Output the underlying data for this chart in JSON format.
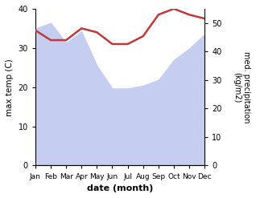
{
  "months": [
    "Jan",
    "Feb",
    "Mar",
    "Apr",
    "May",
    "Jun",
    "Jul",
    "Aug",
    "Sep",
    "Oct",
    "Nov",
    "Dec"
  ],
  "month_indices": [
    0,
    1,
    2,
    3,
    4,
    5,
    6,
    7,
    8,
    9,
    10,
    11
  ],
  "temperature": [
    34.5,
    32.0,
    32.0,
    35.0,
    34.0,
    31.0,
    31.0,
    33.0,
    38.5,
    40.0,
    38.5,
    37.5
  ],
  "precipitation_right": [
    48,
    50,
    43,
    47,
    35,
    27,
    27,
    28,
    30,
    37,
    41,
    46
  ],
  "temp_color": "#c0393b",
  "precip_fill_color": "#c5cdf0",
  "temp_ylim": [
    0,
    40
  ],
  "precip_ylim": [
    0,
    55
  ],
  "temp_yticks": [
    0,
    10,
    20,
    30,
    40
  ],
  "precip_yticks": [
    0,
    10,
    20,
    30,
    40,
    50
  ],
  "xlabel": "date (month)",
  "ylabel_left": "max temp (C)",
  "ylabel_right": "med. precipitation\n(kg/m2)",
  "bg_color": "#ffffff",
  "fig_width": 3.18,
  "fig_height": 2.47,
  "dpi": 100
}
